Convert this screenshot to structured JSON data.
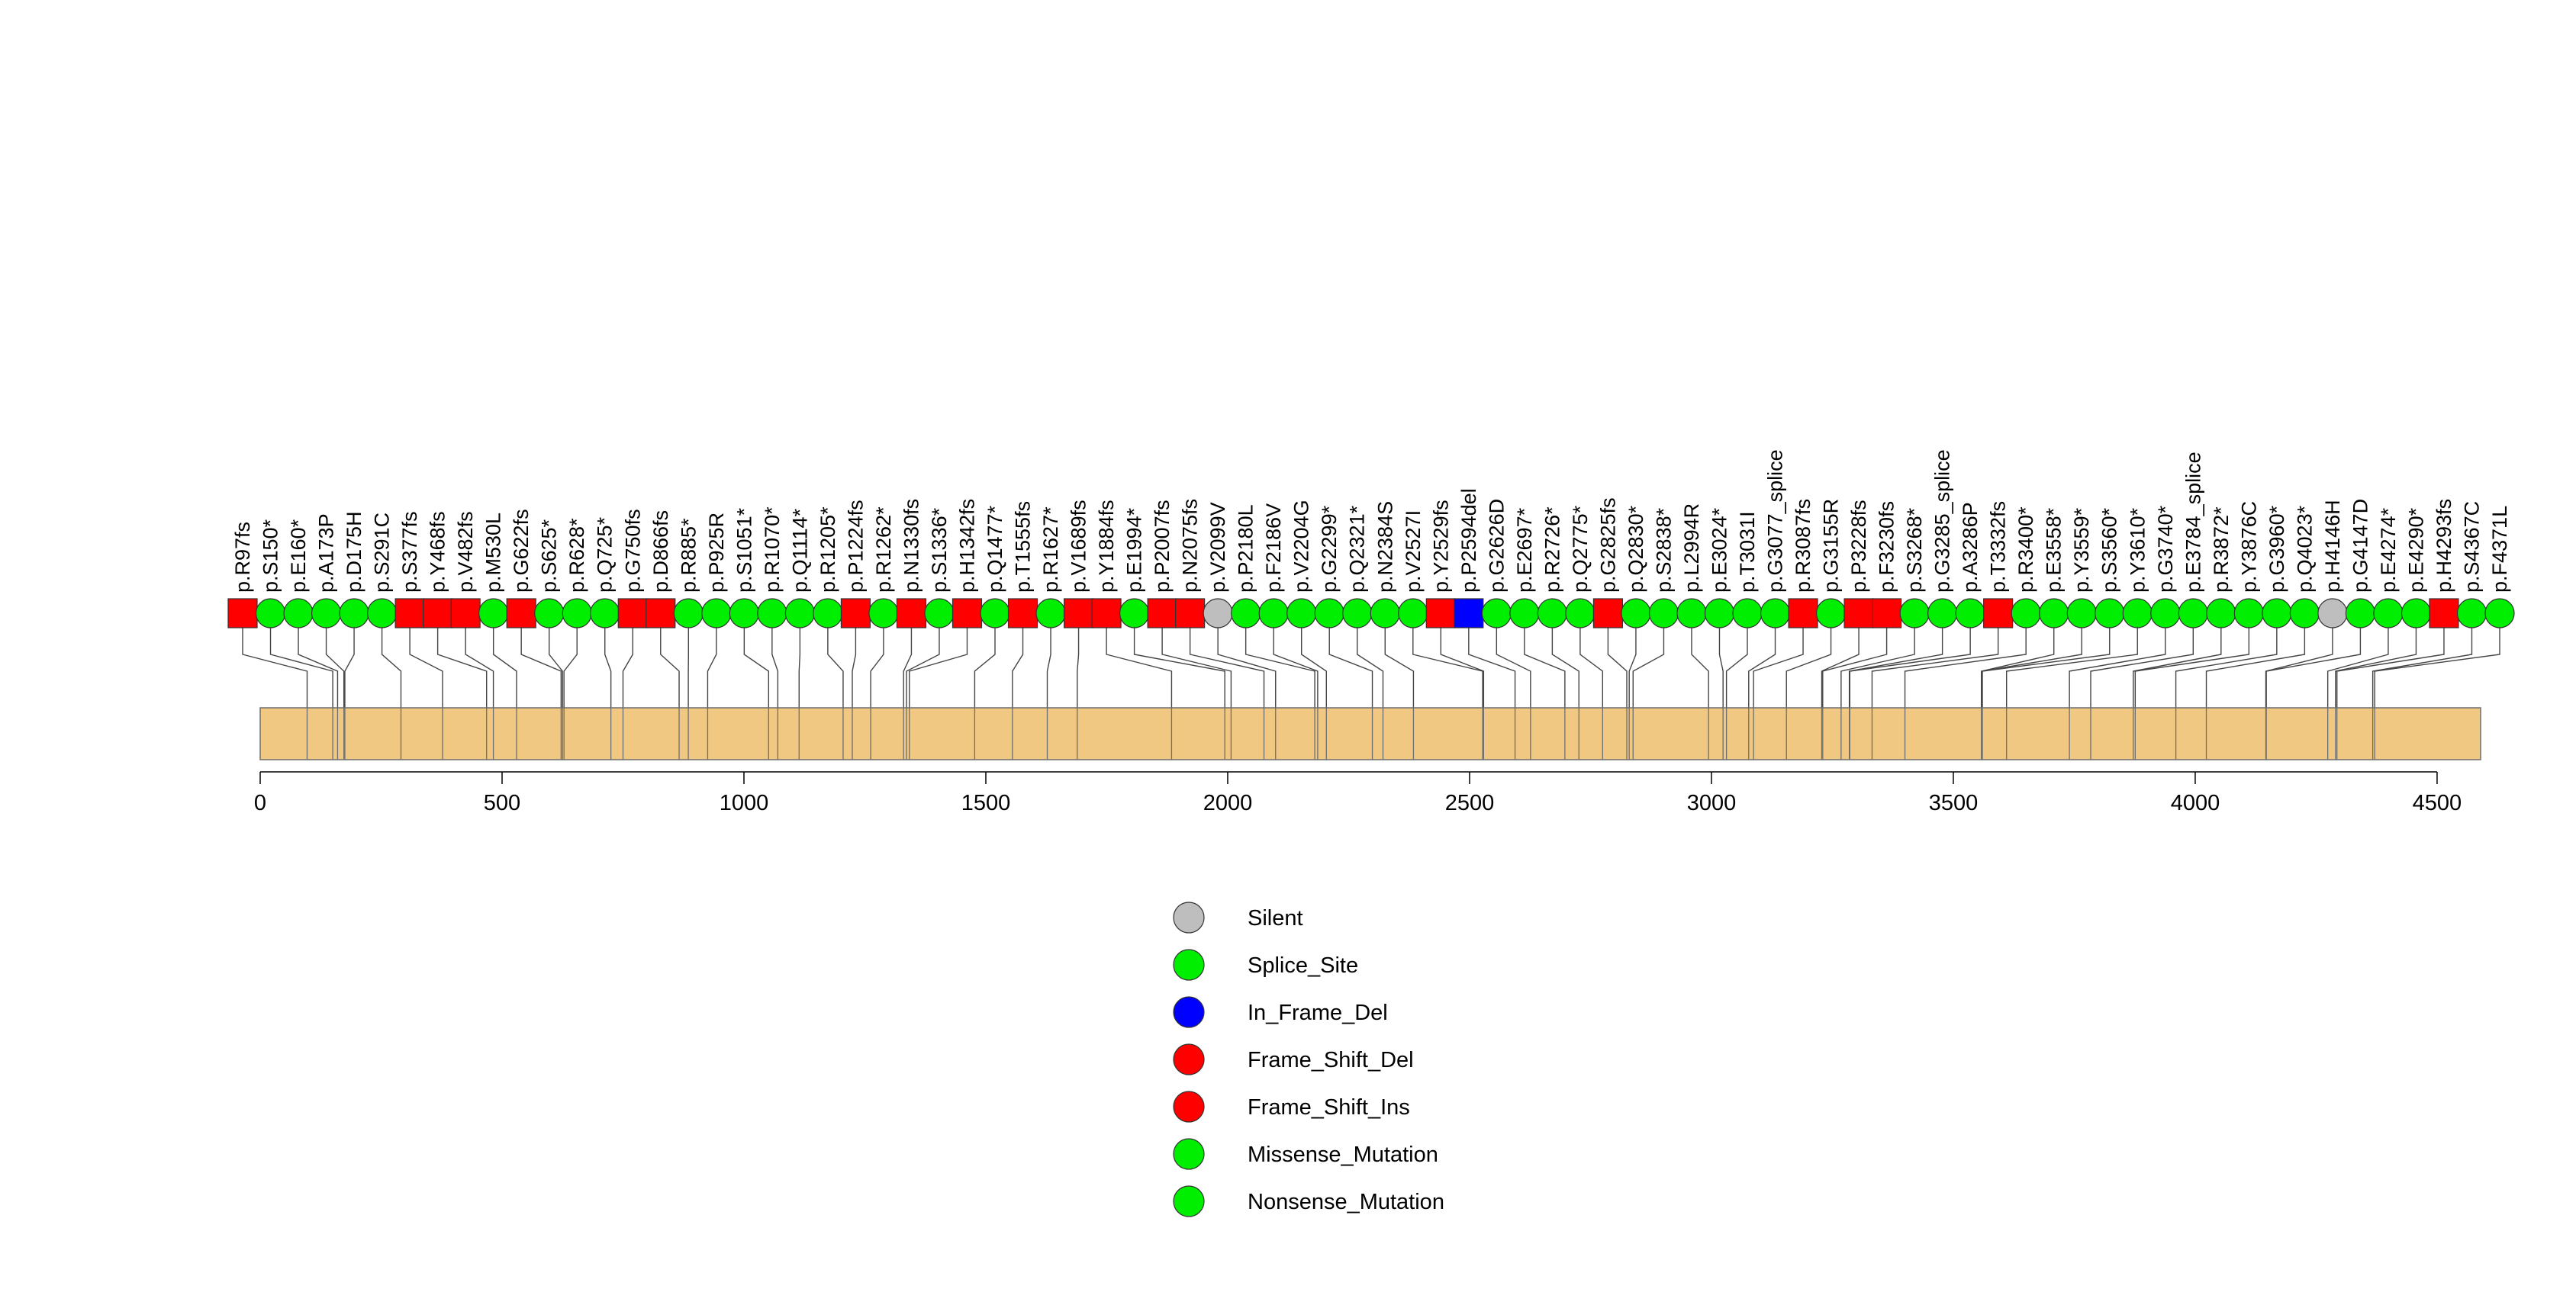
{
  "chart_data": {
    "type": "lollipop",
    "title": "",
    "xlabel": "",
    "ylabel": "",
    "xlim": [
      0,
      4590
    ],
    "protein_length": 4590,
    "x_ticks": [
      0,
      500,
      1000,
      1500,
      2000,
      2500,
      3000,
      3500,
      4000,
      4500
    ],
    "legend_position": "bottom-center",
    "legend": [
      {
        "name": "Silent",
        "color": "#BEBEBE"
      },
      {
        "name": "Splice_Site",
        "color": "#00EE00"
      },
      {
        "name": "In_Frame_Del",
        "color": "#0000FF"
      },
      {
        "name": "Frame_Shift_Del",
        "color": "#FF0000"
      },
      {
        "name": "Frame_Shift_Ins",
        "color": "#FF0000"
      },
      {
        "name": "Missense_Mutation",
        "color": "#00EE00"
      },
      {
        "name": "Nonsense_Mutation",
        "color": "#00EE00"
      }
    ],
    "colors": {
      "silent": "#BEBEBE",
      "green": "#00EE00",
      "blue": "#0000FF",
      "red": "#FF0000",
      "domain": "#F0C882"
    },
    "mutations": [
      {
        "label": "p.R97fs",
        "pos": 97,
        "shape": "square",
        "color": "#FF0000"
      },
      {
        "label": "p.S150*",
        "pos": 150,
        "shape": "circle",
        "color": "#00EE00"
      },
      {
        "label": "p.E160*",
        "pos": 160,
        "shape": "circle",
        "color": "#00EE00"
      },
      {
        "label": "p.A173P",
        "pos": 173,
        "shape": "circle",
        "color": "#00EE00"
      },
      {
        "label": "p.D175H",
        "pos": 175,
        "shape": "circle",
        "color": "#00EE00"
      },
      {
        "label": "p.S291C",
        "pos": 291,
        "shape": "circle",
        "color": "#00EE00"
      },
      {
        "label": "p.S377fs",
        "pos": 377,
        "shape": "square",
        "color": "#FF0000"
      },
      {
        "label": "p.Y468fs",
        "pos": 468,
        "shape": "square",
        "color": "#FF0000"
      },
      {
        "label": "p.V482fs",
        "pos": 482,
        "shape": "square",
        "color": "#FF0000"
      },
      {
        "label": "p.M530L",
        "pos": 530,
        "shape": "circle",
        "color": "#00EE00"
      },
      {
        "label": "p.G622fs",
        "pos": 622,
        "shape": "square",
        "color": "#FF0000"
      },
      {
        "label": "p.S625*",
        "pos": 625,
        "shape": "circle",
        "color": "#00EE00"
      },
      {
        "label": "p.R628*",
        "pos": 628,
        "shape": "circle",
        "color": "#00EE00"
      },
      {
        "label": "p.Q725*",
        "pos": 725,
        "shape": "circle",
        "color": "#00EE00"
      },
      {
        "label": "p.G750fs",
        "pos": 750,
        "shape": "square",
        "color": "#FF0000"
      },
      {
        "label": "p.D866fs",
        "pos": 866,
        "shape": "square",
        "color": "#FF0000"
      },
      {
        "label": "p.R885*",
        "pos": 885,
        "shape": "circle",
        "color": "#00EE00"
      },
      {
        "label": "p.P925R",
        "pos": 925,
        "shape": "circle",
        "color": "#00EE00"
      },
      {
        "label": "p.S1051*",
        "pos": 1051,
        "shape": "circle",
        "color": "#00EE00"
      },
      {
        "label": "p.R1070*",
        "pos": 1070,
        "shape": "circle",
        "color": "#00EE00"
      },
      {
        "label": "p.Q1114*",
        "pos": 1114,
        "shape": "circle",
        "color": "#00EE00"
      },
      {
        "label": "p.R1205*",
        "pos": 1205,
        "shape": "circle",
        "color": "#00EE00"
      },
      {
        "label": "p.P1224fs",
        "pos": 1224,
        "shape": "square",
        "color": "#FF0000"
      },
      {
        "label": "p.R1262*",
        "pos": 1262,
        "shape": "circle",
        "color": "#00EE00"
      },
      {
        "label": "p.N1330fs",
        "pos": 1330,
        "shape": "square",
        "color": "#FF0000"
      },
      {
        "label": "p.S1336*",
        "pos": 1336,
        "shape": "circle",
        "color": "#00EE00"
      },
      {
        "label": "p.H1342fs",
        "pos": 1342,
        "shape": "square",
        "color": "#FF0000"
      },
      {
        "label": "p.Q1477*",
        "pos": 1477,
        "shape": "circle",
        "color": "#00EE00"
      },
      {
        "label": "p.T1555fs",
        "pos": 1555,
        "shape": "square",
        "color": "#FF0000"
      },
      {
        "label": "p.R1627*",
        "pos": 1627,
        "shape": "circle",
        "color": "#00EE00"
      },
      {
        "label": "p.V1689fs",
        "pos": 1689,
        "shape": "square",
        "color": "#FF0000"
      },
      {
        "label": "p.Y1884fs",
        "pos": 1884,
        "shape": "square",
        "color": "#FF0000"
      },
      {
        "label": "p.E1994*",
        "pos": 1994,
        "shape": "circle",
        "color": "#00EE00"
      },
      {
        "label": "p.P2007fs",
        "pos": 2007,
        "shape": "square",
        "color": "#FF0000"
      },
      {
        "label": "p.N2075fs",
        "pos": 2075,
        "shape": "square",
        "color": "#FF0000"
      },
      {
        "label": "p.V2099V",
        "pos": 2099,
        "shape": "circle",
        "color": "#BEBEBE"
      },
      {
        "label": "p.P2180L",
        "pos": 2180,
        "shape": "circle",
        "color": "#00EE00"
      },
      {
        "label": "p.F2186V",
        "pos": 2186,
        "shape": "circle",
        "color": "#00EE00"
      },
      {
        "label": "p.V2204G",
        "pos": 2204,
        "shape": "circle",
        "color": "#00EE00"
      },
      {
        "label": "p.G2299*",
        "pos": 2299,
        "shape": "circle",
        "color": "#00EE00"
      },
      {
        "label": "p.Q2321*",
        "pos": 2321,
        "shape": "circle",
        "color": "#00EE00"
      },
      {
        "label": "p.N2384S",
        "pos": 2384,
        "shape": "circle",
        "color": "#00EE00"
      },
      {
        "label": "p.V2527I",
        "pos": 2527,
        "shape": "circle",
        "color": "#00EE00"
      },
      {
        "label": "p.Y2529fs",
        "pos": 2529,
        "shape": "square",
        "color": "#FF0000"
      },
      {
        "label": "p.P2594del",
        "pos": 2594,
        "shape": "square",
        "color": "#0000FF"
      },
      {
        "label": "p.G2626D",
        "pos": 2626,
        "shape": "circle",
        "color": "#00EE00"
      },
      {
        "label": "p.E2697*",
        "pos": 2697,
        "shape": "circle",
        "color": "#00EE00"
      },
      {
        "label": "p.R2726*",
        "pos": 2726,
        "shape": "circle",
        "color": "#00EE00"
      },
      {
        "label": "p.Q2775*",
        "pos": 2775,
        "shape": "circle",
        "color": "#00EE00"
      },
      {
        "label": "p.G2825fs",
        "pos": 2825,
        "shape": "square",
        "color": "#FF0000"
      },
      {
        "label": "p.Q2830*",
        "pos": 2830,
        "shape": "circle",
        "color": "#00EE00"
      },
      {
        "label": "p.S2838*",
        "pos": 2838,
        "shape": "circle",
        "color": "#00EE00"
      },
      {
        "label": "p.L2994R",
        "pos": 2994,
        "shape": "circle",
        "color": "#00EE00"
      },
      {
        "label": "p.E3024*",
        "pos": 3024,
        "shape": "circle",
        "color": "#00EE00"
      },
      {
        "label": "p.T3031I",
        "pos": 3031,
        "shape": "circle",
        "color": "#00EE00"
      },
      {
        "label": "p.G3077_splice",
        "pos": 3077,
        "shape": "circle",
        "color": "#00EE00"
      },
      {
        "label": "p.R3087fs",
        "pos": 3087,
        "shape": "square",
        "color": "#FF0000"
      },
      {
        "label": "p.G3155R",
        "pos": 3155,
        "shape": "circle",
        "color": "#00EE00"
      },
      {
        "label": "p.P3228fs",
        "pos": 3228,
        "shape": "square",
        "color": "#FF0000"
      },
      {
        "label": "p.F3230fs",
        "pos": 3230,
        "shape": "square",
        "color": "#FF0000"
      },
      {
        "label": "p.S3268*",
        "pos": 3268,
        "shape": "circle",
        "color": "#00EE00"
      },
      {
        "label": "p.G3285_splice",
        "pos": 3285,
        "shape": "circle",
        "color": "#00EE00"
      },
      {
        "label": "p.A3286P",
        "pos": 3286,
        "shape": "circle",
        "color": "#00EE00"
      },
      {
        "label": "p.T3332fs",
        "pos": 3332,
        "shape": "square",
        "color": "#FF0000"
      },
      {
        "label": "p.R3400*",
        "pos": 3400,
        "shape": "circle",
        "color": "#00EE00"
      },
      {
        "label": "p.E3558*",
        "pos": 3558,
        "shape": "circle",
        "color": "#00EE00"
      },
      {
        "label": "p.Y3559*",
        "pos": 3559,
        "shape": "circle",
        "color": "#00EE00"
      },
      {
        "label": "p.S3560*",
        "pos": 3560,
        "shape": "circle",
        "color": "#00EE00"
      },
      {
        "label": "p.Y3610*",
        "pos": 3610,
        "shape": "circle",
        "color": "#00EE00"
      },
      {
        "label": "p.G3740*",
        "pos": 3740,
        "shape": "circle",
        "color": "#00EE00"
      },
      {
        "label": "p.E3784_splice",
        "pos": 3784,
        "shape": "circle",
        "color": "#00EE00"
      },
      {
        "label": "p.R3872*",
        "pos": 3872,
        "shape": "circle",
        "color": "#00EE00"
      },
      {
        "label": "p.Y3876C",
        "pos": 3876,
        "shape": "circle",
        "color": "#00EE00"
      },
      {
        "label": "p.G3960*",
        "pos": 3960,
        "shape": "circle",
        "color": "#00EE00"
      },
      {
        "label": "p.Q4023*",
        "pos": 4023,
        "shape": "circle",
        "color": "#00EE00"
      },
      {
        "label": "p.H4146H",
        "pos": 4146,
        "shape": "circle",
        "color": "#BEBEBE"
      },
      {
        "label": "p.G4147D",
        "pos": 4147,
        "shape": "circle",
        "color": "#00EE00"
      },
      {
        "label": "p.E4274*",
        "pos": 4274,
        "shape": "circle",
        "color": "#00EE00"
      },
      {
        "label": "p.E4290*",
        "pos": 4290,
        "shape": "circle",
        "color": "#00EE00"
      },
      {
        "label": "p.H4293fs",
        "pos": 4293,
        "shape": "square",
        "color": "#FF0000"
      },
      {
        "label": "p.S4367C",
        "pos": 4367,
        "shape": "circle",
        "color": "#00EE00"
      },
      {
        "label": "p.F4371L",
        "pos": 4371,
        "shape": "circle",
        "color": "#00EE00"
      }
    ]
  }
}
